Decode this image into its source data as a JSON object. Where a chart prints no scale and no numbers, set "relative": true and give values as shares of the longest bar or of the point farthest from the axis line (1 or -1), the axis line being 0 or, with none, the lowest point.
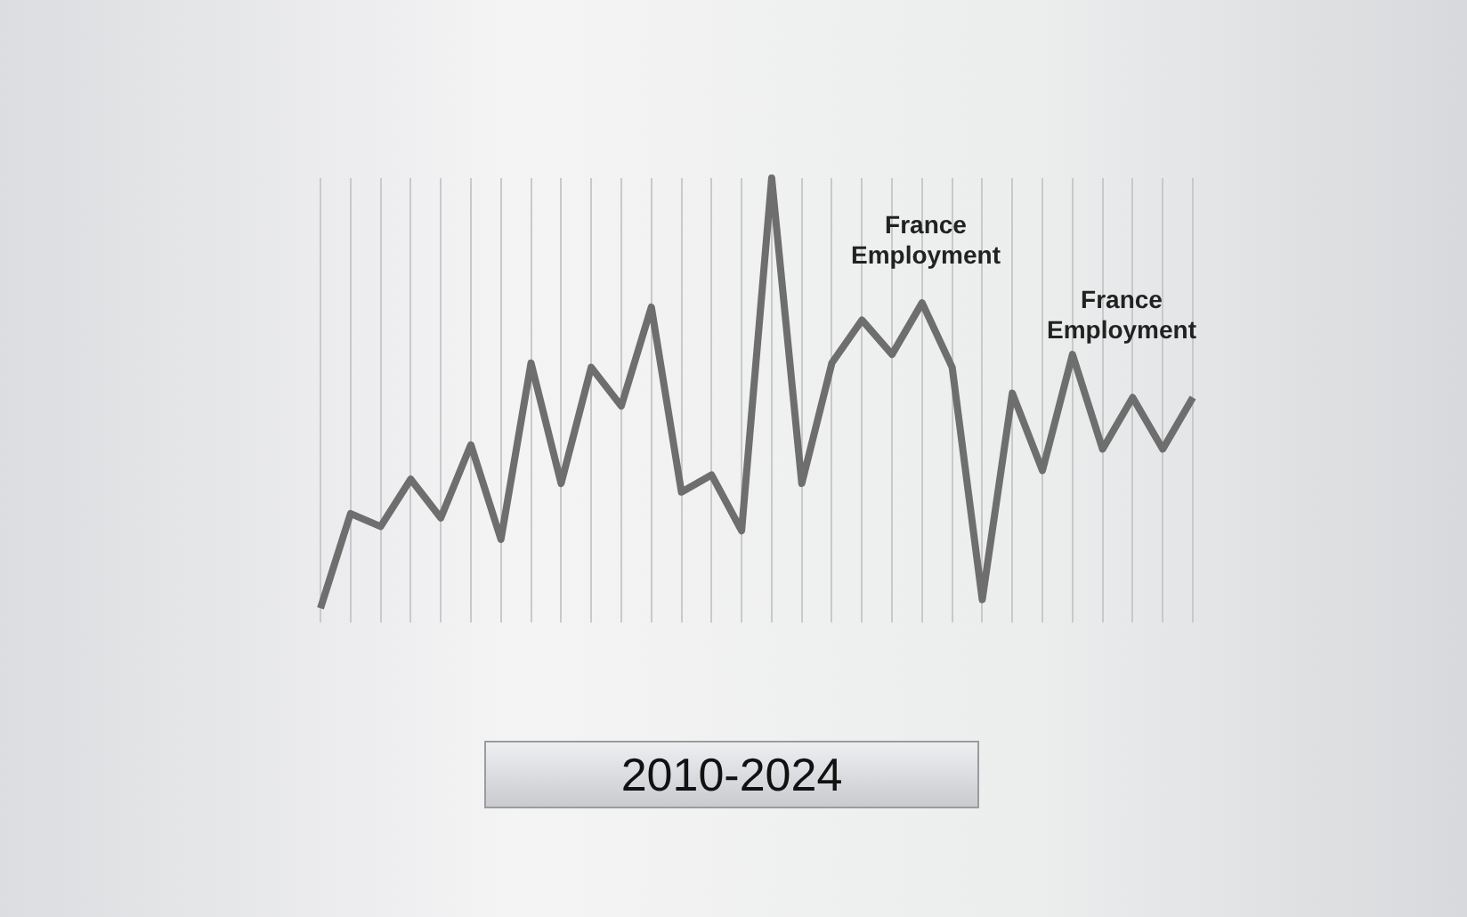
{
  "chart_data": {
    "type": "line",
    "relative": true,
    "grid": "x",
    "marker": "none",
    "line_style": "solid",
    "categories": [
      null,
      null,
      null,
      null,
      null,
      null,
      null,
      null,
      null,
      null,
      null,
      null,
      null,
      null,
      null,
      null,
      null,
      null,
      null,
      null,
      null,
      null,
      null,
      null,
      null,
      null,
      null,
      null,
      null,
      null
    ],
    "series": [
      {
        "color": "#6e6e6e",
        "values": [
          0,
          0.22,
          0.19,
          0.3,
          0.21,
          0.38,
          0.16,
          0.57,
          0.29,
          0.56,
          0.47,
          0.7,
          0.27,
          0.31,
          0.18,
          1,
          0.29,
          0.57,
          0.67,
          0.59,
          0.71,
          0.56,
          0.02,
          0.5,
          0.32,
          0.59,
          0.37,
          0.49,
          0.37,
          0.49
        ]
      }
    ],
    "annotations": [
      "France Employment",
      "France Employment",
      "2010-2024"
    ]
  }
}
